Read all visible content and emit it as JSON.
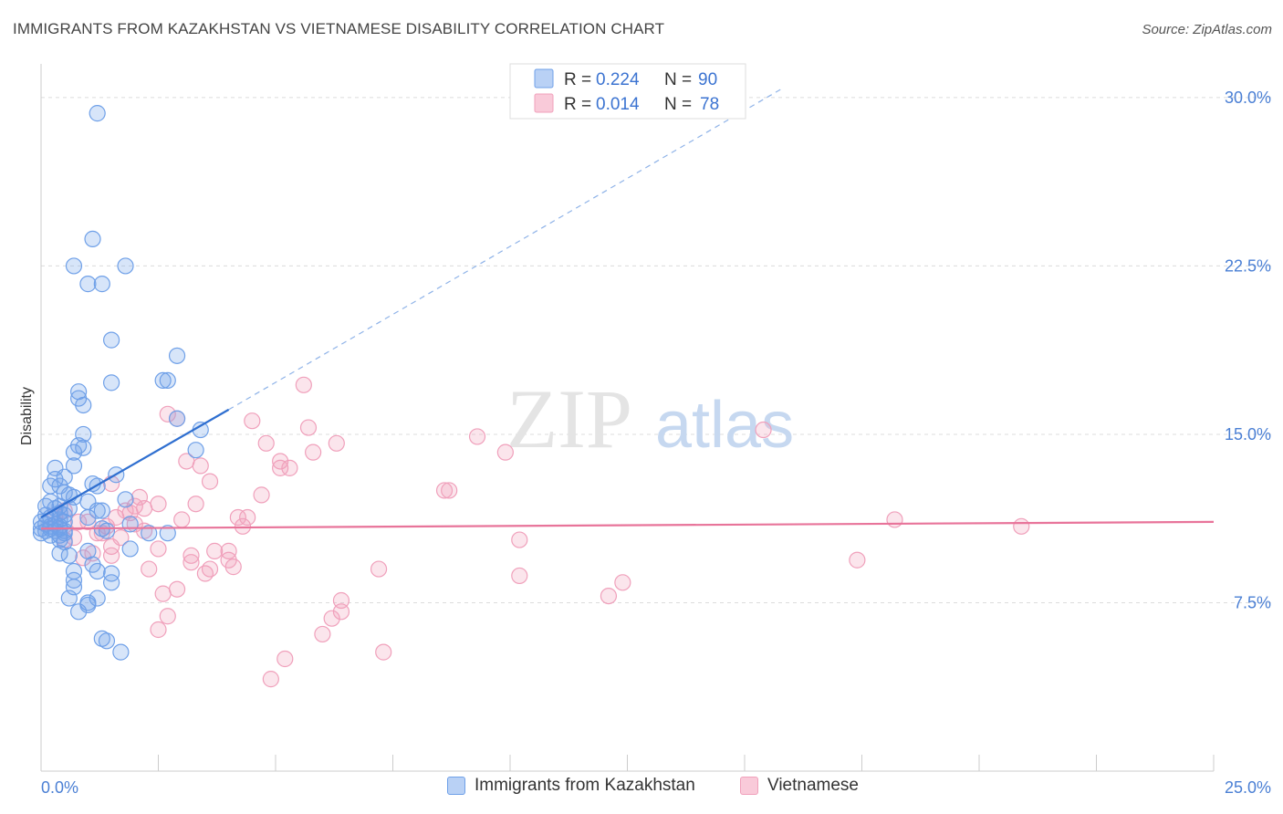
{
  "title": "IMMIGRANTS FROM KAZAKHSTAN VS VIETNAMESE DISABILITY CORRELATION CHART",
  "source": "Source: ZipAtlas.com",
  "watermark": {
    "zip": "ZIP",
    "atlas": "atlas"
  },
  "colors": {
    "blue": "#6fa0e8",
    "blue_line": "#2f6fd0",
    "pink": "#f0a0bb",
    "pink_line": "#e8749a",
    "axis_text": "#4a7fd4"
  },
  "legend": {
    "r_label": "R =",
    "n_label": "N =",
    "series": [
      {
        "name": "Immigrants from Kazakhstan",
        "r": "0.224",
        "n": "90"
      },
      {
        "name": "Vietnamese",
        "r": "0.014",
        "n": "78"
      }
    ]
  },
  "chart_data": {
    "type": "scatter",
    "title": "IMMIGRANTS FROM KAZAKHSTAN VS VIETNAMESE DISABILITY CORRELATION CHART",
    "xlabel": "",
    "ylabel": "Disability",
    "xlim": [
      0,
      25
    ],
    "ylim": [
      0,
      31.5
    ],
    "x_tick_labels": [
      "0.0%",
      "25.0%"
    ],
    "y_ticks": [
      7.5,
      15.0,
      22.5,
      30.0
    ],
    "y_tick_labels": [
      "7.5%",
      "15.0%",
      "22.5%",
      "30.0%"
    ],
    "series": [
      {
        "name": "Immigrants from Kazakhstan",
        "color": "#6fa0e8",
        "trend": {
          "x0": 0.0,
          "y0": 11.3,
          "x1": 4.0,
          "y1": 16.1,
          "dashed_to_x": 15.8,
          "dashed_to_y": 30.4
        },
        "points": [
          [
            1.2,
            29.3
          ],
          [
            1.1,
            23.7
          ],
          [
            0.7,
            22.5
          ],
          [
            1.8,
            22.5
          ],
          [
            1.0,
            21.7
          ],
          [
            1.3,
            21.7
          ],
          [
            1.5,
            19.2
          ],
          [
            2.9,
            18.5
          ],
          [
            1.5,
            17.3
          ],
          [
            2.6,
            17.4
          ],
          [
            2.7,
            17.4
          ],
          [
            0.8,
            16.9
          ],
          [
            0.8,
            16.6
          ],
          [
            0.9,
            16.3
          ],
          [
            2.9,
            15.7
          ],
          [
            3.4,
            15.2
          ],
          [
            0.9,
            15.0
          ],
          [
            0.8,
            14.5
          ],
          [
            0.9,
            14.4
          ],
          [
            0.7,
            14.2
          ],
          [
            3.3,
            14.3
          ],
          [
            0.3,
            13.5
          ],
          [
            0.7,
            13.6
          ],
          [
            0.3,
            13.0
          ],
          [
            0.5,
            13.1
          ],
          [
            1.6,
            13.2
          ],
          [
            0.2,
            12.7
          ],
          [
            0.4,
            12.7
          ],
          [
            1.1,
            12.8
          ],
          [
            1.2,
            12.7
          ],
          [
            0.5,
            12.4
          ],
          [
            0.6,
            12.3
          ],
          [
            0.7,
            12.2
          ],
          [
            0.2,
            12.0
          ],
          [
            1.0,
            12.0
          ],
          [
            1.8,
            12.1
          ],
          [
            0.1,
            11.8
          ],
          [
            0.3,
            11.7
          ],
          [
            0.4,
            11.8
          ],
          [
            0.6,
            11.7
          ],
          [
            1.2,
            11.6
          ],
          [
            1.3,
            11.6
          ],
          [
            0.1,
            11.4
          ],
          [
            0.2,
            11.3
          ],
          [
            0.4,
            11.5
          ],
          [
            0.5,
            11.4
          ],
          [
            1.0,
            11.3
          ],
          [
            0.0,
            11.1
          ],
          [
            0.1,
            11.0
          ],
          [
            0.2,
            10.9
          ],
          [
            0.3,
            11.0
          ],
          [
            0.4,
            10.9
          ],
          [
            0.5,
            11.1
          ],
          [
            1.9,
            11.0
          ],
          [
            0.0,
            10.8
          ],
          [
            0.1,
            10.7
          ],
          [
            0.2,
            10.8
          ],
          [
            0.3,
            10.7
          ],
          [
            0.4,
            10.8
          ],
          [
            0.5,
            10.7
          ],
          [
            1.3,
            10.8
          ],
          [
            1.4,
            10.7
          ],
          [
            0.0,
            10.6
          ],
          [
            0.2,
            10.5
          ],
          [
            0.4,
            10.5
          ],
          [
            0.5,
            10.6
          ],
          [
            2.3,
            10.6
          ],
          [
            2.7,
            10.6
          ],
          [
            0.4,
            10.3
          ],
          [
            0.5,
            10.2
          ],
          [
            0.4,
            9.7
          ],
          [
            0.6,
            9.6
          ],
          [
            1.0,
            9.8
          ],
          [
            1.9,
            9.9
          ],
          [
            1.1,
            9.2
          ],
          [
            0.7,
            8.9
          ],
          [
            1.2,
            8.9
          ],
          [
            1.5,
            8.8
          ],
          [
            0.7,
            8.5
          ],
          [
            1.5,
            8.4
          ],
          [
            0.7,
            8.2
          ],
          [
            0.6,
            7.7
          ],
          [
            1.2,
            7.7
          ],
          [
            1.0,
            7.5
          ],
          [
            1.0,
            7.4
          ],
          [
            0.8,
            7.1
          ],
          [
            1.3,
            5.9
          ],
          [
            1.4,
            5.8
          ],
          [
            1.7,
            5.3
          ],
          [
            0.4,
            11.2
          ]
        ]
      },
      {
        "name": "Vietnamese",
        "color": "#f0a0bb",
        "trend": {
          "x0": 0.0,
          "y0": 10.8,
          "x1": 25.0,
          "y1": 11.1
        },
        "points": [
          [
            5.6,
            17.2
          ],
          [
            2.7,
            15.9
          ],
          [
            2.9,
            15.7
          ],
          [
            4.5,
            15.6
          ],
          [
            5.7,
            15.3
          ],
          [
            15.4,
            15.2
          ],
          [
            9.3,
            14.9
          ],
          [
            4.8,
            14.6
          ],
          [
            6.3,
            14.6
          ],
          [
            5.8,
            14.2
          ],
          [
            9.9,
            14.2
          ],
          [
            3.1,
            13.8
          ],
          [
            5.1,
            13.8
          ],
          [
            3.4,
            13.6
          ],
          [
            5.3,
            13.5
          ],
          [
            5.1,
            13.5
          ],
          [
            3.6,
            12.9
          ],
          [
            1.5,
            12.8
          ],
          [
            8.7,
            12.5
          ],
          [
            8.6,
            12.5
          ],
          [
            4.7,
            12.3
          ],
          [
            2.1,
            12.2
          ],
          [
            2.5,
            11.9
          ],
          [
            3.3,
            11.9
          ],
          [
            2.0,
            11.8
          ],
          [
            1.8,
            11.6
          ],
          [
            0.5,
            11.6
          ],
          [
            0.8,
            11.1
          ],
          [
            1.6,
            11.3
          ],
          [
            4.2,
            11.3
          ],
          [
            4.4,
            11.3
          ],
          [
            18.2,
            11.2
          ],
          [
            2.0,
            11.0
          ],
          [
            1.4,
            10.9
          ],
          [
            4.3,
            10.9
          ],
          [
            20.9,
            10.9
          ],
          [
            1.2,
            10.6
          ],
          [
            1.3,
            10.6
          ],
          [
            0.7,
            10.4
          ],
          [
            1.5,
            10.0
          ],
          [
            10.2,
            10.3
          ],
          [
            3.7,
            9.8
          ],
          [
            4.0,
            9.8
          ],
          [
            1.1,
            9.7
          ],
          [
            1.5,
            9.6
          ],
          [
            3.2,
            9.6
          ],
          [
            4.0,
            9.4
          ],
          [
            3.2,
            9.3
          ],
          [
            17.4,
            9.4
          ],
          [
            0.9,
            9.5
          ],
          [
            2.3,
            9.0
          ],
          [
            3.6,
            9.0
          ],
          [
            7.2,
            9.0
          ],
          [
            4.1,
            9.1
          ],
          [
            3.5,
            8.8
          ],
          [
            10.2,
            8.7
          ],
          [
            12.4,
            8.4
          ],
          [
            2.9,
            8.1
          ],
          [
            2.6,
            7.9
          ],
          [
            12.1,
            7.8
          ],
          [
            6.4,
            7.6
          ],
          [
            6.4,
            7.1
          ],
          [
            2.7,
            6.9
          ],
          [
            6.2,
            6.8
          ],
          [
            2.5,
            6.3
          ],
          [
            6.0,
            6.1
          ],
          [
            7.3,
            5.3
          ],
          [
            5.2,
            5.0
          ],
          [
            4.9,
            4.1
          ],
          [
            2.2,
            10.7
          ],
          [
            1.9,
            11.5
          ],
          [
            3.0,
            11.2
          ],
          [
            1.0,
            11.1
          ],
          [
            2.5,
            9.9
          ],
          [
            0.3,
            11.4
          ],
          [
            0.5,
            10.3
          ],
          [
            1.7,
            10.4
          ],
          [
            2.2,
            11.7
          ]
        ]
      }
    ]
  }
}
